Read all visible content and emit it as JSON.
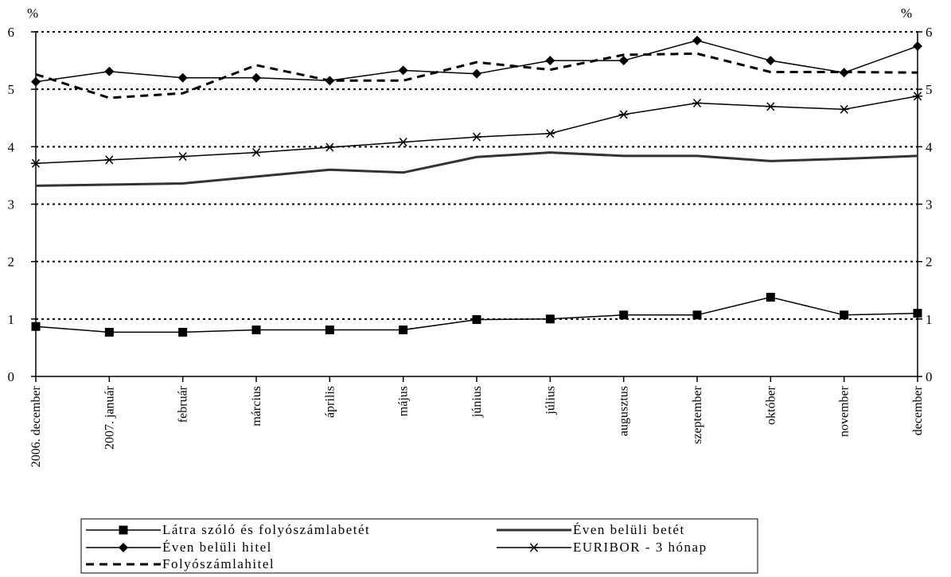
{
  "chart_data": {
    "type": "line",
    "title": "",
    "ylabel_left": "%",
    "ylabel_right": "%",
    "ylim": [
      0,
      6
    ],
    "yticks": [
      0,
      1,
      2,
      3,
      4,
      5,
      6
    ],
    "grid": "horizontal-dotted",
    "legend_position": "bottom",
    "categories": [
      "2006. december",
      "2007. január",
      "február",
      "március",
      "április",
      "május",
      "június",
      "július",
      "augusztus",
      "szeptember",
      "október",
      "november",
      "december"
    ],
    "series": [
      {
        "name": "Látra szóló és folyószámlabetét",
        "marker": "square",
        "style": "solid-thin",
        "color": "#000000",
        "values": [
          0.87,
          0.77,
          0.77,
          0.81,
          0.81,
          0.81,
          0.99,
          1.0,
          1.07,
          1.07,
          1.38,
          1.07,
          1.1
        ]
      },
      {
        "name": "Éven belüli betét",
        "marker": "none",
        "style": "solid-thick",
        "color": "#333333",
        "values": [
          3.32,
          3.34,
          3.36,
          3.48,
          3.6,
          3.55,
          3.82,
          3.9,
          3.84,
          3.84,
          3.75,
          3.79,
          3.84
        ]
      },
      {
        "name": "Éven belüli hitel",
        "marker": "diamond",
        "style": "solid-thin",
        "color": "#000000",
        "values": [
          5.13,
          5.31,
          5.2,
          5.2,
          5.15,
          5.33,
          5.27,
          5.5,
          5.5,
          5.85,
          5.5,
          5.29,
          5.75
        ]
      },
      {
        "name": "EURIBOR - 3 hónap",
        "marker": "star",
        "style": "solid-thin",
        "color": "#000000",
        "values": [
          3.71,
          3.77,
          3.83,
          3.9,
          3.99,
          4.08,
          4.17,
          4.23,
          4.56,
          4.76,
          4.7,
          4.65,
          4.88
        ]
      },
      {
        "name": "Folyószámlahitel",
        "marker": "none",
        "style": "dashed",
        "color": "#000000",
        "values": [
          5.26,
          4.85,
          4.93,
          5.42,
          5.15,
          5.15,
          5.47,
          5.34,
          5.6,
          5.62,
          5.3,
          5.3,
          5.29
        ]
      }
    ]
  }
}
